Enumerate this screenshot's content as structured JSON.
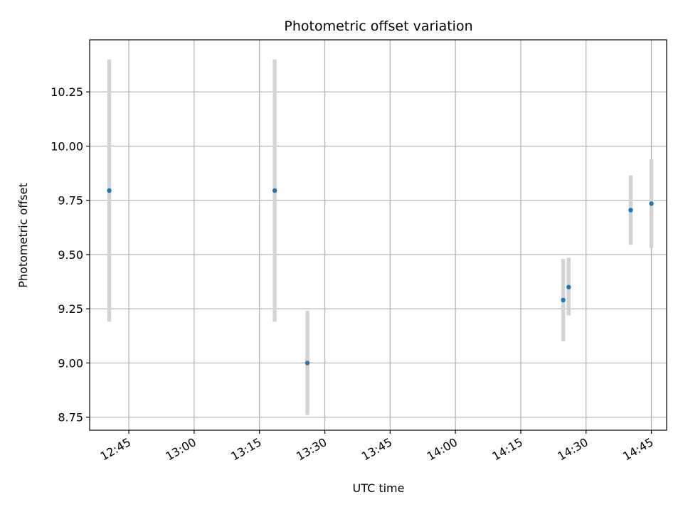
{
  "chart_data": {
    "type": "scatter",
    "title": "Photometric offset variation",
    "xlabel": "UTC time",
    "ylabel": "Photometric offset",
    "x_axis_kind": "time",
    "xlim": [
      "12:36",
      "14:48:30"
    ],
    "ylim": [
      8.69,
      10.49
    ],
    "x_ticks": [
      "12:45",
      "13:00",
      "13:15",
      "13:30",
      "13:45",
      "14:00",
      "14:15",
      "14:30",
      "14:45"
    ],
    "y_ticks": [
      8.75,
      9.0,
      9.25,
      9.5,
      9.75,
      10.0,
      10.25
    ],
    "y_tick_labels": [
      "8.75",
      "9.00",
      "9.25",
      "9.50",
      "9.75",
      "10.00",
      "10.25"
    ],
    "grid": true,
    "legend": false,
    "point_color": "#1f77b4",
    "errorbar_color": "#d3d3d3",
    "series": [
      {
        "points": [
          {
            "x": "12:40:30",
            "y": 9.795,
            "ylo": 9.19,
            "yhi": 10.4
          },
          {
            "x": "13:18:30",
            "y": 9.795,
            "ylo": 9.19,
            "yhi": 10.4
          },
          {
            "x": "13:26:00",
            "y": 9.0,
            "ylo": 8.76,
            "yhi": 9.24
          },
          {
            "x": "14:24:45",
            "y": 9.29,
            "ylo": 9.1,
            "yhi": 9.48
          },
          {
            "x": "14:26:00",
            "y": 9.35,
            "ylo": 9.22,
            "yhi": 9.485
          },
          {
            "x": "14:40:15",
            "y": 9.705,
            "ylo": 9.545,
            "yhi": 9.865
          },
          {
            "x": "14:45:00",
            "y": 9.735,
            "ylo": 9.53,
            "yhi": 9.94
          }
        ]
      }
    ]
  }
}
